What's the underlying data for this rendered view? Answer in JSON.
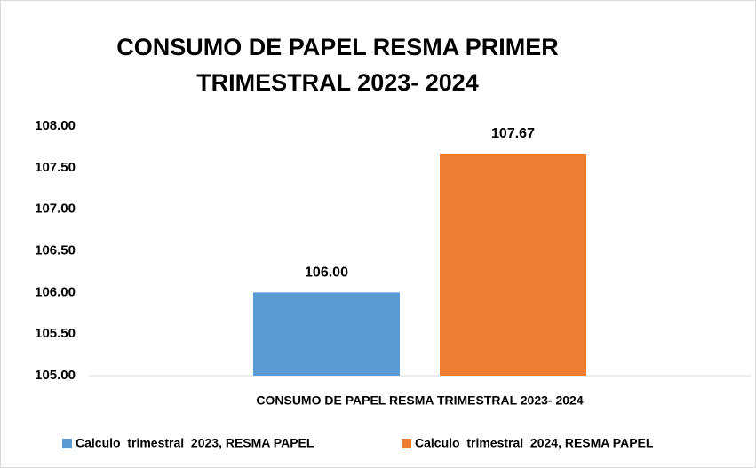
{
  "chart_data": {
    "type": "bar",
    "title": [
      "CONSUMO DE PAPEL RESMA PRIMER",
      "TRIMESTRAL 2023- 2024"
    ],
    "categories": [
      "CONSUMO DE PAPEL RESMA TRIMESTRAL 2023- 2024"
    ],
    "series": [
      {
        "name": "Calculo  trimestral  2023, RESMA PAPEL",
        "color": "#5b9bd5",
        "values": [
          106
        ],
        "value_labels": [
          "106.00"
        ]
      },
      {
        "name": "Calculo  trimestral  2024, RESMA PAPEL",
        "color": "#ed7d31",
        "values": [
          107.67
        ],
        "value_labels": [
          "107.67"
        ]
      }
    ],
    "ylim": [
      105,
      108
    ],
    "yticks": [
      {
        "value": 105,
        "label": "105.00"
      },
      {
        "value": 105.5,
        "label": "105.50"
      },
      {
        "value": 106,
        "label": "106.00"
      },
      {
        "value": 106.5,
        "label": "106.50"
      },
      {
        "value": 107,
        "label": "107.00"
      },
      {
        "value": 107.5,
        "label": "107.50"
      },
      {
        "value": 108,
        "label": "108.00"
      }
    ],
    "grid": false,
    "legend": "bottom"
  }
}
